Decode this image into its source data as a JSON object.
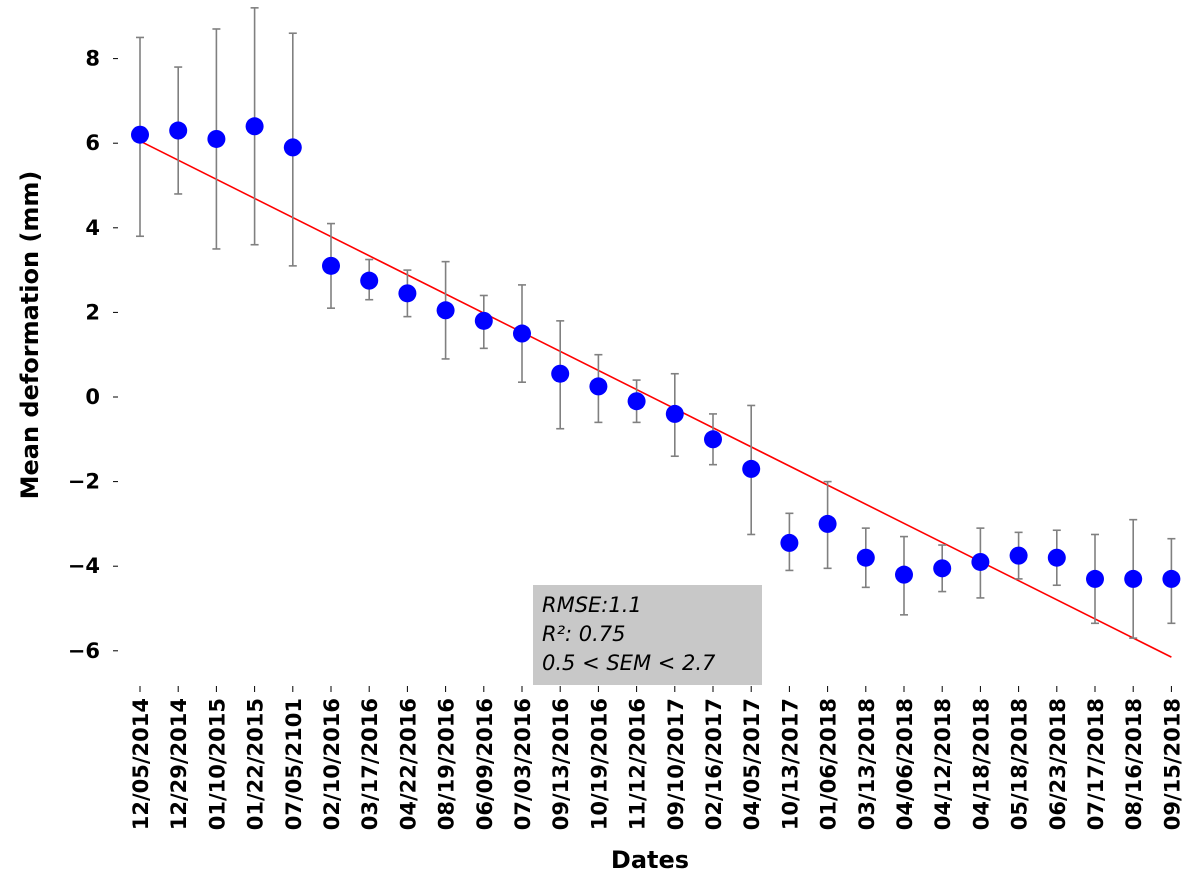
{
  "chart_data": {
    "type": "scatter",
    "xlabel": "Dates",
    "ylabel": "Mean deformation (mm)",
    "ylim": [
      -6.8,
      9.2
    ],
    "yticks": [
      8,
      6,
      4,
      2,
      0,
      -2,
      -4,
      -6
    ],
    "ytick_labels": [
      "8",
      "6",
      "4",
      "2",
      "0",
      "−2",
      "−4",
      "−6"
    ],
    "grid": false,
    "categories": [
      "12/05/2014",
      "12/29/2014",
      "01/10/2015",
      "01/22/2015",
      "07/05/2101",
      "02/10/2016",
      "03/17/2016",
      "04/22/2016",
      "08/19/2016",
      "06/09/2016",
      "07/03/2016",
      "09/13/2016",
      "10/19/2016",
      "11/12/2016",
      "09/10/2017",
      "02/16/2017",
      "04/05/2017",
      "10/13/2017",
      "01/06/2018",
      "03/13/2018",
      "04/06/2018",
      "04/12/2018",
      "04/18/2018",
      "05/18/2018",
      "06/23/2018",
      "07/17/2018",
      "08/16/2018",
      "09/15/2018"
    ],
    "series": [
      {
        "marker_color": "#0000ff",
        "values": [
          6.2,
          6.3,
          6.1,
          6.4,
          5.9,
          3.1,
          2.75,
          2.45,
          2.05,
          1.8,
          1.5,
          0.55,
          0.25,
          -0.1,
          -0.4,
          -1.0,
          -1.7,
          -3.45,
          -3.0,
          -3.8,
          -4.2,
          -4.05,
          -3.9,
          -3.75,
          -3.8,
          -4.3,
          -4.3,
          -4.3
        ],
        "error_low": [
          3.8,
          4.8,
          3.5,
          3.6,
          3.1,
          2.1,
          2.3,
          1.9,
          0.9,
          1.15,
          0.35,
          -0.75,
          -0.6,
          -0.6,
          -1.4,
          -1.6,
          -3.25,
          -4.1,
          -4.05,
          -4.5,
          -5.15,
          -4.6,
          -4.75,
          -4.3,
          -4.45,
          -5.35,
          -5.7,
          -5.35
        ],
        "error_high": [
          8.5,
          7.8,
          8.7,
          9.2,
          8.6,
          4.1,
          3.25,
          3.0,
          3.2,
          2.4,
          2.65,
          1.8,
          1.0,
          0.4,
          0.55,
          -0.4,
          -0.2,
          -2.75,
          -2.0,
          -3.1,
          -3.3,
          -3.5,
          -3.1,
          -3.2,
          -3.15,
          -3.25,
          -2.9,
          -3.35
        ],
        "error_color": "#808080"
      }
    ],
    "trendline": {
      "color": "#ff0000",
      "start": 6.05,
      "end": -6.15
    },
    "stats_box": {
      "lines": [
        "RMSE:1.1",
        "R²: 0.75",
        "0.5 < SEM < 2.7"
      ],
      "background": "#c8c8c8"
    }
  }
}
